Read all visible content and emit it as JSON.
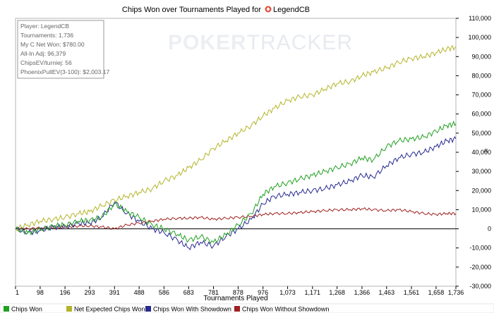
{
  "chart_data": {
    "type": "line",
    "title_prefix": "Chips Won over Tournaments Played for",
    "title_player": "LegendCB",
    "xlabel": "Tournaments Played",
    "ylabel": "",
    "xlim": [
      1,
      1736
    ],
    "ylim": [
      -30000,
      110000
    ],
    "xticks": [
      "1",
      "98",
      "196",
      "293",
      "391",
      "488",
      "586",
      "683",
      "781",
      "878",
      "976",
      "1,073",
      "1,171",
      "1,268",
      "1,366",
      "1,463",
      "1,561",
      "1,658",
      "1,736"
    ],
    "xtick_values": [
      1,
      98,
      196,
      293,
      391,
      488,
      586,
      683,
      781,
      878,
      976,
      1073,
      1171,
      1268,
      1366,
      1463,
      1561,
      1658,
      1736
    ],
    "yticks": [
      "110,000",
      "100,000",
      "90,000",
      "80,000",
      "70,000",
      "60,000",
      "50,000",
      "40,000",
      "30,000",
      "20,000",
      "10,000",
      "0",
      "-10,000",
      "-20,000",
      "-30,000"
    ],
    "ytick_values": [
      110000,
      100000,
      90000,
      80000,
      70000,
      60000,
      50000,
      40000,
      30000,
      20000,
      10000,
      0,
      -10000,
      -20000,
      -30000
    ],
    "grid": false,
    "legend_placement": "bottom",
    "x": [
      1,
      50,
      98,
      150,
      196,
      250,
      293,
      340,
      391,
      440,
      488,
      540,
      586,
      640,
      683,
      730,
      781,
      830,
      878,
      930,
      976,
      1020,
      1073,
      1120,
      1171,
      1220,
      1268,
      1320,
      1366,
      1410,
      1463,
      1510,
      1561,
      1610,
      1658,
      1700,
      1736
    ],
    "series": [
      {
        "name": "Chips Won",
        "color": "#21a121",
        "values": [
          0,
          -2000,
          -500,
          1500,
          2000,
          4000,
          4500,
          6000,
          13000,
          9000,
          6000,
          2000,
          0,
          -3000,
          -6000,
          -4000,
          -7000,
          -3000,
          2000,
          8000,
          18000,
          22000,
          24000,
          26000,
          28000,
          30000,
          32000,
          34000,
          37000,
          36000,
          43000,
          46000,
          47000,
          48000,
          51000,
          54000,
          55000
        ]
      },
      {
        "name": "Net Expected Chips Won",
        "color": "#b4b42a",
        "values": [
          0,
          2000,
          4000,
          5000,
          6000,
          8000,
          9000,
          12000,
          15000,
          17000,
          19000,
          21000,
          25000,
          28000,
          32000,
          36000,
          42000,
          46000,
          50000,
          54000,
          59000,
          63000,
          67000,
          69000,
          70000,
          73000,
          76000,
          77000,
          80000,
          82000,
          84000,
          87000,
          89000,
          90000,
          92000,
          94000,
          95000
        ]
      },
      {
        "name": "Chips Won With Showdown",
        "color": "#27298f",
        "values": [
          0,
          -2000,
          -1000,
          1000,
          1000,
          3000,
          3000,
          6000,
          14000,
          8000,
          4000,
          0,
          -2000,
          -6000,
          -10000,
          -7000,
          -9000,
          -4000,
          0,
          5000,
          13000,
          17000,
          18000,
          19000,
          20000,
          21000,
          23000,
          25000,
          28000,
          27000,
          33000,
          37000,
          39000,
          40000,
          43000,
          46000,
          47000
        ]
      },
      {
        "name": "Chips Won Without Showdown",
        "color": "#a02020",
        "values": [
          0,
          0,
          500,
          500,
          1000,
          1500,
          1500,
          1000,
          0,
          2000,
          3000,
          4000,
          5000,
          5500,
          5500,
          6000,
          5000,
          5500,
          6000,
          6500,
          7500,
          8000,
          8000,
          8500,
          9000,
          9500,
          10000,
          10000,
          10500,
          10000,
          9500,
          10000,
          9000,
          8000,
          7500,
          8000,
          8000
        ]
      }
    ]
  },
  "info_box": {
    "player": "Player: LegendCB",
    "tournaments": "Tournaments: 1,736",
    "net_won": "My C Net Won: $780.00",
    "allin_adj": "All-In Adj: 96,379",
    "chipsev": "ChipsEV/turniej: 56",
    "phoenix": "PhoenixPullEV(3-100): $2,003.17"
  },
  "watermark": {
    "bold": "POKER",
    "light": "TRACKER"
  },
  "right_axis_marker": "#"
}
